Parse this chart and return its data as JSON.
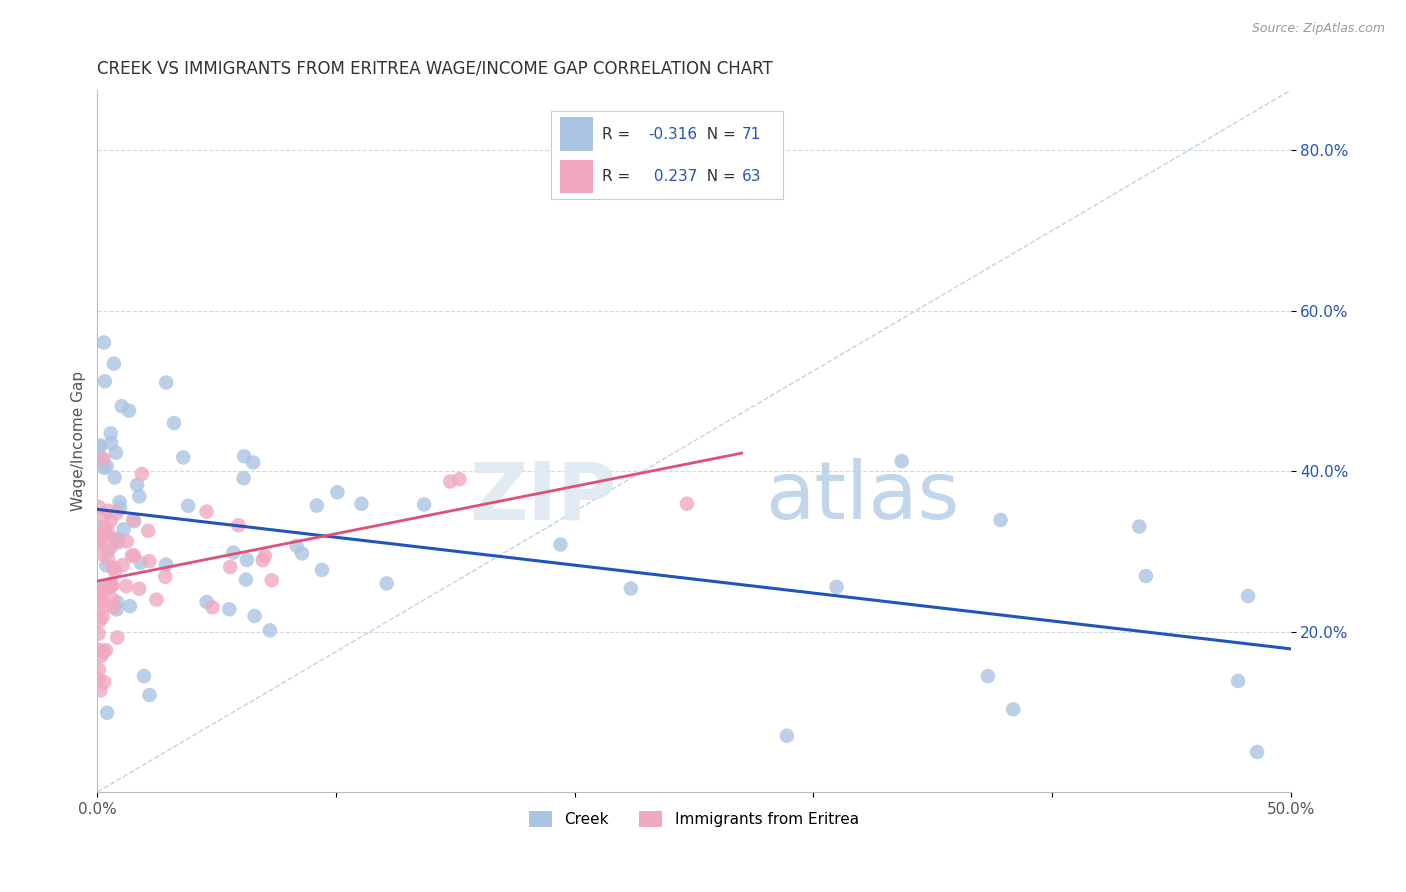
{
  "title": "CREEK VS IMMIGRANTS FROM ERITREA WAGE/INCOME GAP CORRELATION CHART",
  "source": "Source: ZipAtlas.com",
  "ylabel": "Wage/Income Gap",
  "xlim": [
    0.0,
    0.5
  ],
  "ylim": [
    0.0,
    0.875
  ],
  "xticks": [
    0.0,
    0.1,
    0.2,
    0.3,
    0.4,
    0.5
  ],
  "xtick_labels": [
    "0.0%",
    "",
    "",
    "",
    "",
    "50.0%"
  ],
  "yticks": [
    0.2,
    0.4,
    0.6,
    0.8
  ],
  "ytick_labels": [
    "20.0%",
    "40.0%",
    "60.0%",
    "80.0%"
  ],
  "creek_color": "#aac4e2",
  "eritrea_color": "#f0a8c0",
  "creek_line_color": "#2255bb",
  "eritrea_line_color": "#e05075",
  "diagonal_color": "#c0d4e8",
  "creek_R": -0.316,
  "creek_N": 71,
  "eritrea_R": 0.237,
  "eritrea_N": 63,
  "watermark_zip": "ZIP",
  "watermark_atlas": "atlas",
  "background_color": "#ffffff",
  "grid_color": "#d0d8e0",
  "legend_R_color": "#2255bb",
  "legend_text_color": "#333333"
}
